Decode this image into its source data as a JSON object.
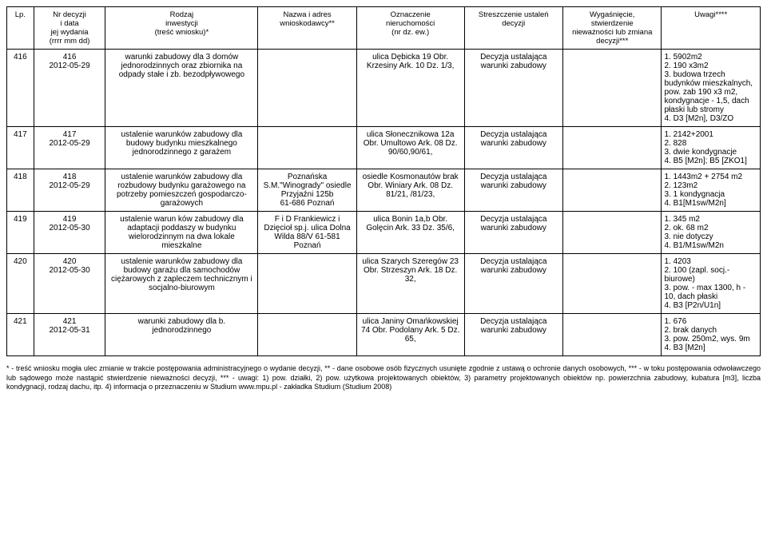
{
  "table": {
    "headers": [
      "Lp.",
      "Nr decyzji\ni data\njej wydania\n(rrrr mm dd)",
      "Rodzaj\ninwestycji\n(treść wniosku)*",
      "Nazwa i adres\nwnioskodawcy**",
      "Oznaczenie\nnieruchomości\n(nr dz. ew.)",
      "Streszczenie ustaleń\ndecyzji",
      "Wygaśnięcie,\nstwierdzenie\nnieważności lub zmiana\ndecyzji***",
      "Uwagi****"
    ],
    "rows": [
      {
        "lp": "416",
        "nr": "416\n2012-05-29",
        "rodzaj": "warunki zabudowy dla 3 domów jednorodzinnych oraz zbiornika na odpady stałe i zb. bezodpływowego",
        "nazwa": "",
        "ozn": "ulica Dębicka 19 Obr. Krzesiny Ark. 10 Dz. 1/3,",
        "stresz": "Decyzja ustalająca warunki zabudowy",
        "wyg": "",
        "uwagi": "1. 5902m2\n2. 190 x3m2\n3. budowa trzech budynków mieszkalnych, pow. zab 190 x3 m2, kondygnacje - 1,5, dach płaski lub stromy\n4. D3 [M2n], D3/ZO"
      },
      {
        "lp": "417",
        "nr": "417\n2012-05-29",
        "rodzaj": "ustalenie warunków zabudowy dla budowy budynku mieszkalnego jednorodzinnego z garażem",
        "nazwa": "",
        "ozn": "ulica Słonecznikowa 12a Obr. Umultowo Ark. 08 Dz. 90/60,90/61,",
        "stresz": "Decyzja ustalająca warunki zabudowy",
        "wyg": "",
        "uwagi": "1. 2142+2001\n2. 828\n3. dwie kondygnacje\n4. B5 [M2n]; B5 [ZKO1]"
      },
      {
        "lp": "418",
        "nr": "418\n2012-05-29",
        "rodzaj": "ustalenie warunków zabudowy dla rozbudowy budynku garażowego na potrzeby pomieszczeń gospodarczo-garażowych",
        "nazwa": "Poznańska S.M.\"Winogrady\" osiedle Przyjaźni 125b\n61-686 Poznań",
        "ozn": "osiedle Kosmonautów brak Obr. Winiary Ark. 08 Dz. 81/21, /81/23,",
        "stresz": "Decyzja ustalająca warunki zabudowy",
        "wyg": "",
        "uwagi": "1. 1443m2 + 2754 m2\n2. 123m2\n3. 1 kondygnacja\n4. B1[M1sw/M2n]"
      },
      {
        "lp": "419",
        "nr": "419\n2012-05-30",
        "rodzaj": "ustalenie warun ków zabudowy dla adaptacji poddaszy w budynku wielorodzinnym na dwa lokale mieszkalne",
        "nazwa": "F i D Frankiewicz i Dzięcioł sp.j. ulica Dolna Wilda 88/V 61-581 Poznań",
        "ozn": "ulica Bonin 1a,b Obr. Golęcin Ark. 33 Dz. 35/6,",
        "stresz": "Decyzja ustalająca warunki zabudowy",
        "wyg": "",
        "uwagi": "1. 345 m2\n2. ok. 68 m2\n3. nie dotyczy\n4. B1/M1sw/M2n"
      },
      {
        "lp": "420",
        "nr": "420\n2012-05-30",
        "rodzaj": "ustalenie warunków zabudowy dla budowy garażu dla samochodów ciężarowych z zapleczem technicznym i socjalno-biurowym",
        "nazwa": "",
        "ozn": "ulica Szarych Szeregów 23 Obr. Strzeszyn Ark. 18 Dz. 32,",
        "stresz": "Decyzja ustalająca warunki zabudowy",
        "wyg": "",
        "uwagi": "1. 4203\n2. 100 (zapl. socj.-biurowe)\n3. pow. - max 1300, h - 10, dach płaski\n4. B3 [P2n/U1n]"
      },
      {
        "lp": "421",
        "nr": "421\n2012-05-31",
        "rodzaj": "warunki zabudowy dla b. jednorodzinnego",
        "nazwa": "",
        "ozn": "ulica Janiny Omańkowskiej 74 Obr. Podolany Ark. 5 Dz. 65,",
        "stresz": "Decyzja ustalająca warunki zabudowy",
        "wyg": "",
        "uwagi": "1. 676\n2. brak danych\n3. pow. 250m2, wys. 9m\n4. B3 [M2n]"
      }
    ]
  },
  "footnote": "* - treść wniosku mogła ulec zmianie w trakcie postępowania administracyjnego o wydanie decyzji, ** - dane osobowe osób fizycznych usunięte zgodnie z ustawą o ochronie danych osobowych, *** - w toku postępowania odwoławczego lub sądowego może nastąpić stwierdzenie nieważności decyzji, *** - uwagi: 1) pow. działki, 2) pow. użytkowa projektowanych obiektów, 3) parametry projektowanych obiektów np. powierzchnia zabudowy, kubatura [m3], liczba kondygnacji, rodzaj dachu, itp. 4) informacja o przeznaczeniu w Studium www.mpu.pl - zakładka Studium (Studium 2008)"
}
